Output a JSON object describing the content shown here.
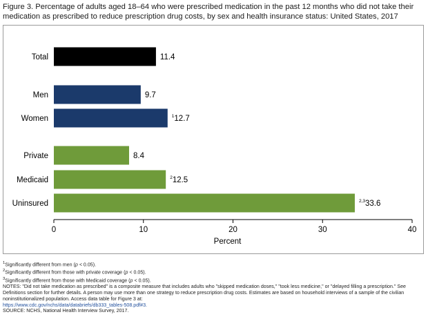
{
  "figure": {
    "title_line1": "Figure 3. Percentage of adults aged 18–64 who were prescribed medication in the past 12 months who did not take their",
    "title_line2": "medication as prescribed to reduce prescription drug costs, by sex and health insurance status: United States, 2017"
  },
  "chart_data": {
    "type": "bar",
    "orientation": "horizontal",
    "xlabel": "Percent",
    "xlim": [
      0,
      40
    ],
    "xticks": [
      0,
      10,
      20,
      30,
      40
    ],
    "grid": false,
    "categories": [
      "Total",
      "Men",
      "Women",
      "Private",
      "Medicaid",
      "Uninsured"
    ],
    "values": [
      11.4,
      9.7,
      12.7,
      8.4,
      12.5,
      33.6
    ],
    "value_labels": [
      "11.4",
      "9.7",
      "12.7",
      "8.4",
      "12.5",
      "33.6"
    ],
    "superscripts": [
      "",
      "",
      "1",
      "",
      "2",
      "2,3"
    ],
    "bar_colors": [
      "#000000",
      "#1b3a6b",
      "#1b3a6b",
      "#6f9b3a",
      "#6f9b3a",
      "#6f9b3a"
    ]
  },
  "notes": {
    "fn1_mark": "1",
    "fn1_text": "Significantly different from men (",
    "fn2_mark": "2",
    "fn2_text": "Significantly different from those with private coverage (",
    "fn3_mark": "3",
    "fn3_text": "Significantly different from those with Medicaid coverage (",
    "p_letter": "p",
    "p_tail": " < 0.05).",
    "notes_text": "NOTES: \"Did not take medication as prescribed\" is a composite measure that includes adults who \"skipped medication doses,\" \"took less medicine,\" or \"delayed filling a prescription.\" See Definitions section for further details. A person may use more than one strategy to reduce prescription drug costs. Estimates are based on household interviews of a sample of the civilian noninstitutionalized population. Access data table for Figure 3 at:",
    "link_text": "https://www.cdc.gov/nchs/data/databriefs/db333_tables-508.pdf#3.",
    "source": "SOURCE: NCHS, National Health Interview Survey, 2017."
  }
}
